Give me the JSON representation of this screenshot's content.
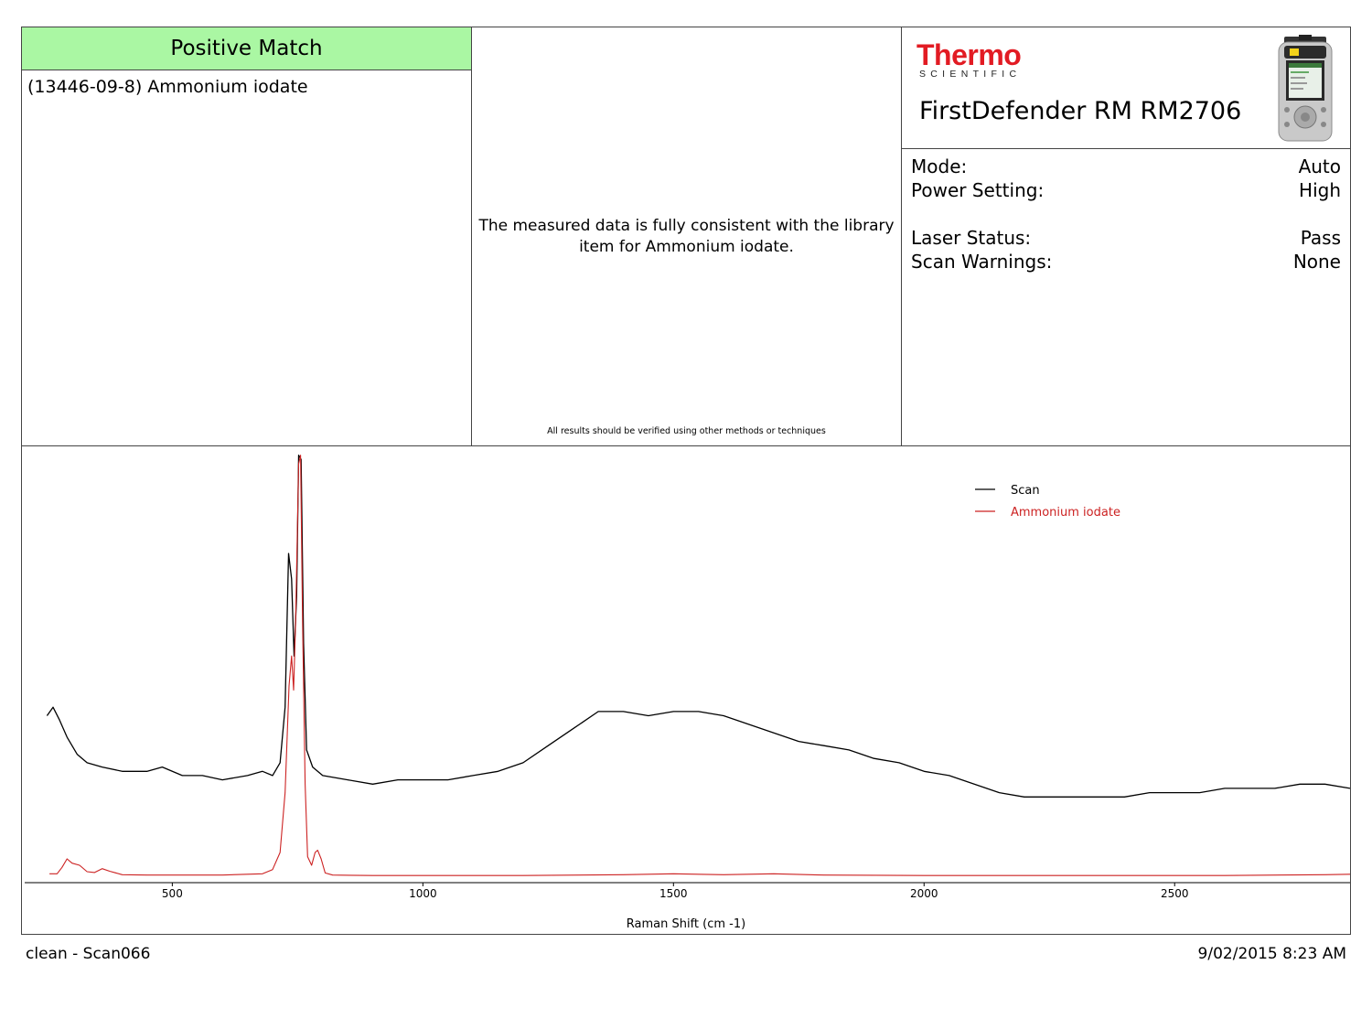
{
  "result": {
    "status_label": "Positive Match",
    "compound": "(13446-09-8) Ammonium iodate",
    "message": "The measured data is fully consistent with the library item for Ammonium iodate.",
    "disclaimer": "All results should be verified using other methods or techniques"
  },
  "brand": {
    "logo_word": "Thermo",
    "logo_sub": "SCIENTIFIC"
  },
  "device": {
    "name": "FirstDefender RM RM2706"
  },
  "info": [
    {
      "label": "Mode:",
      "value": "Auto"
    },
    {
      "label": "Power Setting:",
      "value": "High"
    },
    {
      "label": "Laser Status:",
      "value": "Pass"
    },
    {
      "label": "Scan Warnings:",
      "value": "None"
    }
  ],
  "footer": {
    "left": "clean - Scan066",
    "right": "9/02/2015 8:23 AM"
  },
  "colors": {
    "match_bg": "#aaf7a3",
    "scan": "#000000",
    "library": "#cc2222",
    "logo": "#e21b23"
  },
  "chart_data": {
    "type": "line",
    "xlabel": "Raman Shift (cm -1)",
    "ylabel": "",
    "xlim": [
      200,
      2850
    ],
    "ylim": [
      0,
      1
    ],
    "x_ticks": [
      500,
      1000,
      1500,
      2000,
      2500
    ],
    "y_axis_shown": false,
    "grid": false,
    "legend": "top-right",
    "series": [
      {
        "name": "Scan",
        "color": "#000000",
        "points": [
          [
            250,
            0.38
          ],
          [
            262,
            0.4
          ],
          [
            275,
            0.37
          ],
          [
            290,
            0.33
          ],
          [
            310,
            0.29
          ],
          [
            330,
            0.27
          ],
          [
            360,
            0.26
          ],
          [
            400,
            0.25
          ],
          [
            450,
            0.25
          ],
          [
            480,
            0.26
          ],
          [
            520,
            0.24
          ],
          [
            560,
            0.24
          ],
          [
            600,
            0.23
          ],
          [
            650,
            0.24
          ],
          [
            680,
            0.25
          ],
          [
            700,
            0.24
          ],
          [
            715,
            0.27
          ],
          [
            725,
            0.4
          ],
          [
            732,
            0.76
          ],
          [
            738,
            0.7
          ],
          [
            743,
            0.52
          ],
          [
            748,
            0.66
          ],
          [
            752,
            0.99
          ],
          [
            757,
            0.98
          ],
          [
            762,
            0.55
          ],
          [
            768,
            0.3
          ],
          [
            780,
            0.26
          ],
          [
            800,
            0.24
          ],
          [
            850,
            0.23
          ],
          [
            900,
            0.22
          ],
          [
            950,
            0.23
          ],
          [
            1000,
            0.23
          ],
          [
            1050,
            0.23
          ],
          [
            1100,
            0.24
          ],
          [
            1150,
            0.25
          ],
          [
            1200,
            0.27
          ],
          [
            1250,
            0.31
          ],
          [
            1300,
            0.35
          ],
          [
            1350,
            0.39
          ],
          [
            1400,
            0.39
          ],
          [
            1450,
            0.38
          ],
          [
            1500,
            0.39
          ],
          [
            1550,
            0.39
          ],
          [
            1600,
            0.38
          ],
          [
            1650,
            0.36
          ],
          [
            1700,
            0.34
          ],
          [
            1750,
            0.32
          ],
          [
            1800,
            0.31
          ],
          [
            1850,
            0.3
          ],
          [
            1900,
            0.28
          ],
          [
            1950,
            0.27
          ],
          [
            2000,
            0.25
          ],
          [
            2050,
            0.24
          ],
          [
            2100,
            0.22
          ],
          [
            2150,
            0.2
          ],
          [
            2200,
            0.19
          ],
          [
            2250,
            0.19
          ],
          [
            2300,
            0.19
          ],
          [
            2350,
            0.19
          ],
          [
            2400,
            0.19
          ],
          [
            2450,
            0.2
          ],
          [
            2500,
            0.2
          ],
          [
            2550,
            0.2
          ],
          [
            2600,
            0.21
          ],
          [
            2650,
            0.21
          ],
          [
            2700,
            0.21
          ],
          [
            2750,
            0.22
          ],
          [
            2800,
            0.22
          ],
          [
            2850,
            0.21
          ]
        ]
      },
      {
        "name": "Ammonium iodate",
        "color": "#cc2222",
        "points": [
          [
            255,
            0.01
          ],
          [
            270,
            0.01
          ],
          [
            280,
            0.025
          ],
          [
            290,
            0.045
          ],
          [
            300,
            0.035
          ],
          [
            315,
            0.03
          ],
          [
            330,
            0.015
          ],
          [
            345,
            0.013
          ],
          [
            360,
            0.022
          ],
          [
            375,
            0.016
          ],
          [
            400,
            0.008
          ],
          [
            450,
            0.007
          ],
          [
            500,
            0.007
          ],
          [
            600,
            0.007
          ],
          [
            680,
            0.01
          ],
          [
            700,
            0.02
          ],
          [
            715,
            0.06
          ],
          [
            725,
            0.2
          ],
          [
            733,
            0.45
          ],
          [
            738,
            0.52
          ],
          [
            742,
            0.44
          ],
          [
            746,
            0.6
          ],
          [
            752,
            0.97
          ],
          [
            756,
            0.99
          ],
          [
            760,
            0.6
          ],
          [
            765,
            0.22
          ],
          [
            770,
            0.05
          ],
          [
            778,
            0.03
          ],
          [
            785,
            0.06
          ],
          [
            790,
            0.065
          ],
          [
            797,
            0.045
          ],
          [
            805,
            0.012
          ],
          [
            820,
            0.007
          ],
          [
            900,
            0.006
          ],
          [
            1000,
            0.006
          ],
          [
            1200,
            0.006
          ],
          [
            1400,
            0.008
          ],
          [
            1500,
            0.01
          ],
          [
            1600,
            0.008
          ],
          [
            1700,
            0.01
          ],
          [
            1800,
            0.007
          ],
          [
            2000,
            0.006
          ],
          [
            2200,
            0.006
          ],
          [
            2400,
            0.006
          ],
          [
            2600,
            0.006
          ],
          [
            2800,
            0.008
          ],
          [
            2850,
            0.009
          ]
        ]
      }
    ]
  }
}
